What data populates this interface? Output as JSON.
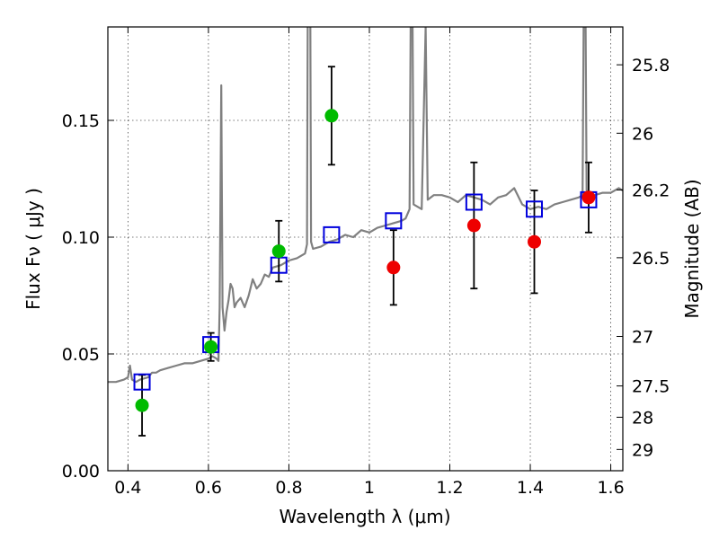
{
  "chart_data": {
    "type": "scatter",
    "xlabel": "Wavelength  λ (μm)",
    "ylabel": "Flux  Fν  ( μJy )",
    "y2label": "Magnitude (AB)",
    "xlim": [
      0.35,
      1.63
    ],
    "ylim": [
      0.0,
      0.19
    ],
    "grid": true,
    "x_ticks": [
      0.4,
      0.6,
      0.8,
      1.0,
      1.2,
      1.4,
      1.6
    ],
    "x_tick_labels": [
      "0.4",
      "0.6",
      "0.8",
      "1",
      "1.2",
      "1.4",
      "1.6"
    ],
    "y_ticks": [
      0.0,
      0.05,
      0.1,
      0.15
    ],
    "y_tick_labels": [
      "0.00",
      "0.05",
      "0.10",
      "0.15"
    ],
    "mag_ticks": [
      {
        "label": "25.8",
        "flux": 0.1738
      },
      {
        "label": "26",
        "flux": 0.1445
      },
      {
        "label": "26.2",
        "flux": 0.1202
      },
      {
        "label": "26.5",
        "flux": 0.0912
      },
      {
        "label": "27",
        "flux": 0.0575
      },
      {
        "label": "27.5",
        "flux": 0.0363
      },
      {
        "label": "28",
        "flux": 0.0229
      },
      {
        "label": "29",
        "flux": 0.0091
      }
    ],
    "colors": {
      "model": "#808080",
      "green": "#00bb00",
      "red": "#ee0000",
      "square": "#0000dd",
      "errorbar": "#000000"
    },
    "observed_green": [
      {
        "x": 0.435,
        "y": 0.028,
        "yerr": 0.013
      },
      {
        "x": 0.606,
        "y": 0.053,
        "yerr": 0.006
      },
      {
        "x": 0.775,
        "y": 0.094,
        "yerr": 0.013
      },
      {
        "x": 0.906,
        "y": 0.152,
        "yerr": 0.021
      }
    ],
    "observed_red": [
      {
        "x": 1.06,
        "y": 0.087,
        "yerr": 0.016
      },
      {
        "x": 1.26,
        "y": 0.105,
        "yerr": 0.027
      },
      {
        "x": 1.41,
        "y": 0.098,
        "yerr": 0.022
      },
      {
        "x": 1.545,
        "y": 0.117,
        "yerr": 0.015
      }
    ],
    "model_photometry": [
      {
        "x": 0.435,
        "y": 0.038
      },
      {
        "x": 0.606,
        "y": 0.054
      },
      {
        "x": 0.775,
        "y": 0.088
      },
      {
        "x": 0.906,
        "y": 0.101
      },
      {
        "x": 1.06,
        "y": 0.107
      },
      {
        "x": 1.26,
        "y": 0.115
      },
      {
        "x": 1.41,
        "y": 0.112
      },
      {
        "x": 1.545,
        "y": 0.116
      }
    ],
    "model_spectrum": [
      [
        0.35,
        0.038
      ],
      [
        0.37,
        0.038
      ],
      [
        0.39,
        0.039
      ],
      [
        0.4,
        0.04
      ],
      [
        0.405,
        0.045
      ],
      [
        0.41,
        0.039
      ],
      [
        0.42,
        0.038
      ],
      [
        0.43,
        0.039
      ],
      [
        0.45,
        0.04
      ],
      [
        0.46,
        0.042
      ],
      [
        0.47,
        0.042
      ],
      [
        0.48,
        0.043
      ],
      [
        0.5,
        0.044
      ],
      [
        0.52,
        0.045
      ],
      [
        0.54,
        0.046
      ],
      [
        0.56,
        0.046
      ],
      [
        0.58,
        0.047
      ],
      [
        0.6,
        0.048
      ],
      [
        0.61,
        0.049
      ],
      [
        0.62,
        0.048
      ],
      [
        0.625,
        0.047
      ],
      [
        0.628,
        0.07
      ],
      [
        0.632,
        0.165
      ],
      [
        0.635,
        0.07
      ],
      [
        0.64,
        0.06
      ],
      [
        0.645,
        0.068
      ],
      [
        0.65,
        0.073
      ],
      [
        0.655,
        0.08
      ],
      [
        0.66,
        0.078
      ],
      [
        0.665,
        0.07
      ],
      [
        0.67,
        0.072
      ],
      [
        0.68,
        0.074
      ],
      [
        0.69,
        0.07
      ],
      [
        0.7,
        0.075
      ],
      [
        0.71,
        0.082
      ],
      [
        0.72,
        0.078
      ],
      [
        0.73,
        0.08
      ],
      [
        0.74,
        0.084
      ],
      [
        0.75,
        0.083
      ],
      [
        0.76,
        0.087
      ],
      [
        0.78,
        0.088
      ],
      [
        0.8,
        0.09
      ],
      [
        0.82,
        0.091
      ],
      [
        0.84,
        0.093
      ],
      [
        0.845,
        0.097
      ],
      [
        0.848,
        0.26
      ],
      [
        0.852,
        0.26
      ],
      [
        0.855,
        0.098
      ],
      [
        0.86,
        0.095
      ],
      [
        0.88,
        0.096
      ],
      [
        0.9,
        0.098
      ],
      [
        0.92,
        0.099
      ],
      [
        0.94,
        0.101
      ],
      [
        0.96,
        0.1
      ],
      [
        0.98,
        0.103
      ],
      [
        1.0,
        0.102
      ],
      [
        1.02,
        0.104
      ],
      [
        1.04,
        0.105
      ],
      [
        1.06,
        0.106
      ],
      [
        1.08,
        0.107
      ],
      [
        1.09,
        0.108
      ],
      [
        1.1,
        0.112
      ],
      [
        1.105,
        0.26
      ],
      [
        1.11,
        0.114
      ],
      [
        1.12,
        0.113
      ],
      [
        1.13,
        0.112
      ],
      [
        1.14,
        0.19
      ],
      [
        1.145,
        0.116
      ],
      [
        1.16,
        0.118
      ],
      [
        1.18,
        0.118
      ],
      [
        1.2,
        0.117
      ],
      [
        1.22,
        0.115
      ],
      [
        1.24,
        0.118
      ],
      [
        1.26,
        0.117
      ],
      [
        1.28,
        0.116
      ],
      [
        1.3,
        0.114
      ],
      [
        1.32,
        0.117
      ],
      [
        1.34,
        0.118
      ],
      [
        1.36,
        0.121
      ],
      [
        1.38,
        0.114
      ],
      [
        1.4,
        0.112
      ],
      [
        1.42,
        0.113
      ],
      [
        1.44,
        0.112
      ],
      [
        1.46,
        0.114
      ],
      [
        1.48,
        0.115
      ],
      [
        1.5,
        0.116
      ],
      [
        1.52,
        0.117
      ],
      [
        1.53,
        0.118
      ],
      [
        1.535,
        0.26
      ],
      [
        1.54,
        0.12
      ],
      [
        1.56,
        0.118
      ],
      [
        1.58,
        0.119
      ],
      [
        1.6,
        0.119
      ],
      [
        1.62,
        0.121
      ],
      [
        1.63,
        0.12
      ]
    ]
  }
}
